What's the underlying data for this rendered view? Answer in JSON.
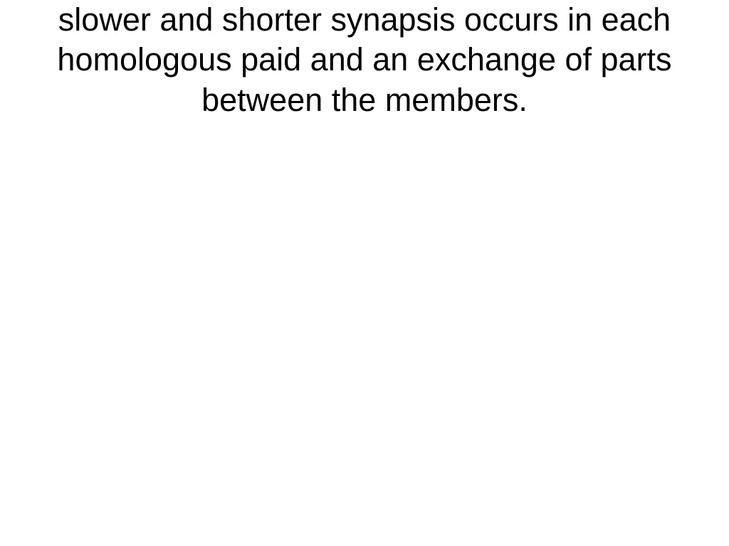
{
  "slide": {
    "body_text": "slower and shorter synapsis occurs in each homologous paid and an exchange of parts between the members.",
    "background_color": "#ffffff",
    "text_color": "#000000",
    "font_size": 45,
    "font_family": "Tahoma, Verdana, Arial, sans-serif",
    "text_align": "center",
    "line_height": 1.25
  }
}
